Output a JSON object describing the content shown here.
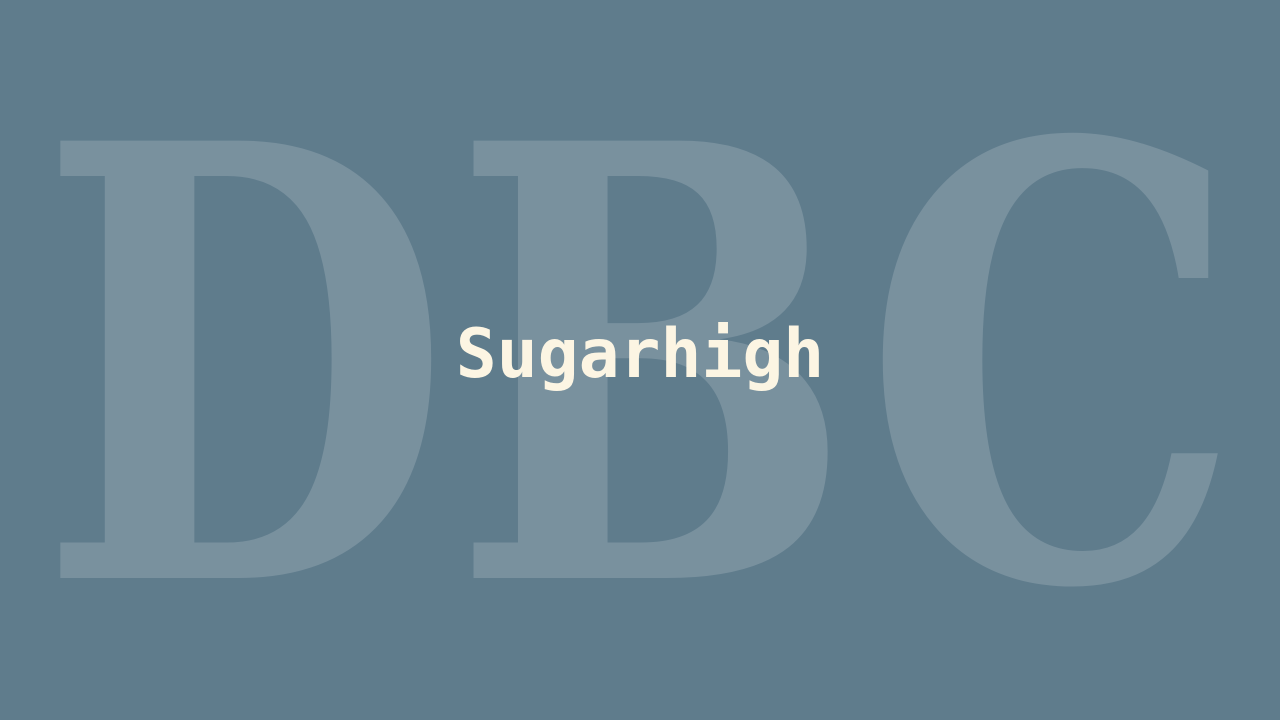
{
  "title": "Sugarhigh",
  "backdrop_letters": "DBC",
  "colors": {
    "background": "#5f7c8c",
    "backdrop_letters": "#a3b3bd",
    "title": "#fcf5e3"
  }
}
